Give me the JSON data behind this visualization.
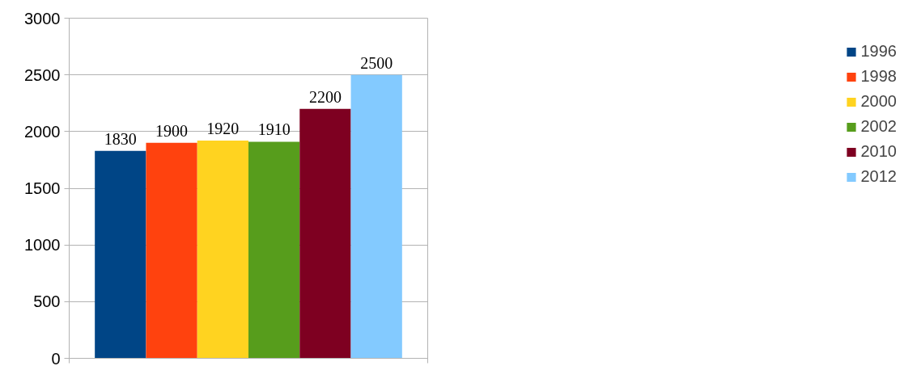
{
  "chart_data": {
    "type": "bar",
    "categories": [
      null
    ],
    "series": [
      {
        "name": "1996",
        "color": "#004586",
        "values": [
          1830
        ]
      },
      {
        "name": "1998",
        "color": "#ff420e",
        "values": [
          1900
        ]
      },
      {
        "name": "2000",
        "color": "#ffd320",
        "values": [
          1920
        ]
      },
      {
        "name": "2002",
        "color": "#579d1c",
        "values": [
          1910
        ]
      },
      {
        "name": "2010",
        "color": "#7e0021",
        "values": [
          2200
        ]
      },
      {
        "name": "2012",
        "color": "#83caff",
        "values": [
          2500
        ]
      }
    ],
    "ylim": [
      0,
      3000
    ],
    "yticks": [
      0,
      500,
      1000,
      1500,
      2000,
      2500,
      3000
    ],
    "grid": "y",
    "legend": "right",
    "data_labels": true
  }
}
